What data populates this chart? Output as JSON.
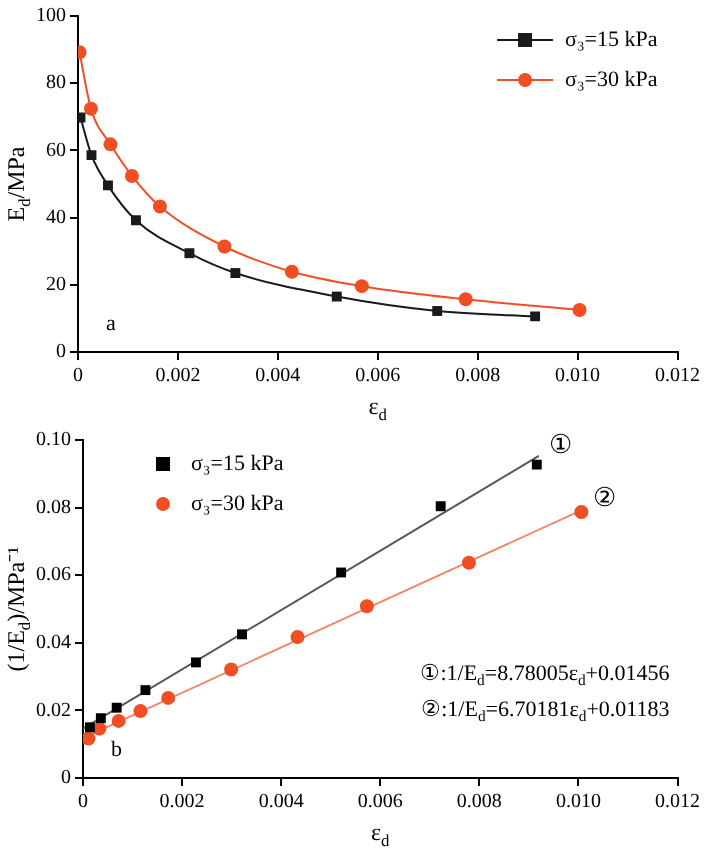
{
  "chart_data": [
    {
      "type": "line",
      "xlabel": "ε$_{d}$",
      "ylabel": "E$_{d}$/MPa",
      "xlim": [
        0,
        0.012
      ],
      "xticks": [
        0,
        0.002,
        0.004,
        0.006,
        0.008,
        {
          "value": 0.01,
          "label": "0.010"
        },
        0.012
      ],
      "ylim": [
        0,
        100
      ],
      "yticks": [
        0,
        20,
        40,
        60,
        80,
        100
      ],
      "grid": false,
      "legend": "top right",
      "annotations": [
        "a"
      ],
      "series": [
        {
          "name": "σ₃=15 kPa",
          "color": "#1a1a1a",
          "marker": "square",
          "x": [
            5e-05,
            0.00027,
            0.0006,
            0.00116,
            0.00223,
            0.00315,
            0.00518,
            0.00719,
            0.00915
          ],
          "values": [
            69.8,
            58.6,
            49.6,
            39.2,
            29.4,
            23.5,
            16.5,
            12.2,
            10.6
          ]
        },
        {
          "name": "σ₃=30 kPa",
          "color": "#f04e23",
          "marker": "circle",
          "x": [
            3e-05,
            0.00026,
            0.00065,
            0.00108,
            0.00164,
            0.00293,
            0.00428,
            0.00568,
            0.00776,
            0.01004
          ],
          "values": [
            89.2,
            72.4,
            61.8,
            52.4,
            43.3,
            31.4,
            23.9,
            19.6,
            15.7,
            12.5
          ]
        }
      ]
    },
    {
      "type": "scatter",
      "xlabel": "ε$_{d}$",
      "ylabel": "(1/E$_{d}$)/MPa⁻¹",
      "xlim": [
        0,
        0.012
      ],
      "xticks": [
        0,
        0.002,
        0.004,
        0.006,
        0.008,
        {
          "value": 0.01,
          "label": "0.010"
        },
        0.012
      ],
      "ylim": [
        0,
        0.1
      ],
      "yticks": [
        0,
        0.02,
        0.04,
        0.06,
        0.08,
        {
          "value": 0.1,
          "label": "0.10"
        }
      ],
      "grid": false,
      "legend": "top left",
      "annotations": [
        "b",
        "①:1/E$_{d}$=8.78005ε$_{d}$+0.01456",
        "②:1/E$_{d}$=6.70181ε$_{d}$+0.01183",
        {
          "text": "①",
          "x": 0.0092,
          "y": 0.0953
        },
        {
          "text": "②",
          "x": 0.0101,
          "y": 0.0795
        }
      ],
      "series": [
        {
          "name": "σ₃=15 kPa",
          "color": "#000000",
          "marker": "square",
          "x": [
            0.00014,
            0.00036,
            0.00068,
            0.00126,
            0.00228,
            0.00321,
            0.00521,
            0.00722,
            0.00916
          ],
          "values": [
            0.015,
            0.0177,
            0.0208,
            0.026,
            0.0342,
            0.0425,
            0.0608,
            0.0804,
            0.0927
          ]
        },
        {
          "name": "σ₃=30 kPa",
          "color": "#f04e23",
          "marker": "circle",
          "x": [
            0.00011,
            0.00033,
            0.00072,
            0.00116,
            0.00172,
            0.00299,
            0.00433,
            0.00573,
            0.00779,
            0.01006
          ],
          "values": [
            0.0117,
            0.0146,
            0.0169,
            0.0198,
            0.0237,
            0.0321,
            0.0417,
            0.0508,
            0.0637,
            0.0787
          ]
        },
        {
          "type": "line",
          "color": "#555555",
          "marker": "none",
          "x": [
            0,
            0.0092
          ],
          "values": [
            0.0146,
            0.0953
          ]
        },
        {
          "type": "line",
          "color": "#f4876a",
          "marker": "none",
          "x": [
            0,
            0.0101
          ],
          "values": [
            0.0118,
            0.0795
          ]
        }
      ]
    }
  ]
}
